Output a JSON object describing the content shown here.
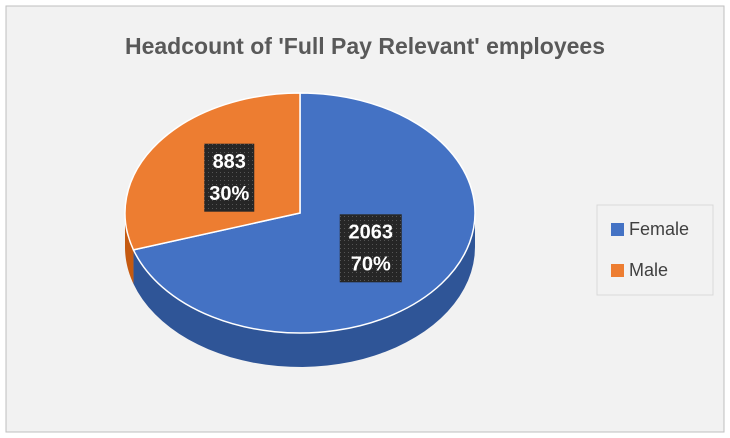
{
  "chart_data": {
    "type": "pie",
    "title": "Headcount of 'Full Pay Relevant' employees",
    "categories": [
      "Female",
      "Male"
    ],
    "values": [
      2063,
      883
    ],
    "percent_values": [
      70,
      30
    ],
    "percent_labels": [
      "70%",
      "30%"
    ],
    "colors": [
      "#4472c4",
      "#ed7d31"
    ],
    "side_colors": [
      "#2f5597",
      "#c55a11"
    ],
    "legend": "right",
    "three_d": true
  }
}
